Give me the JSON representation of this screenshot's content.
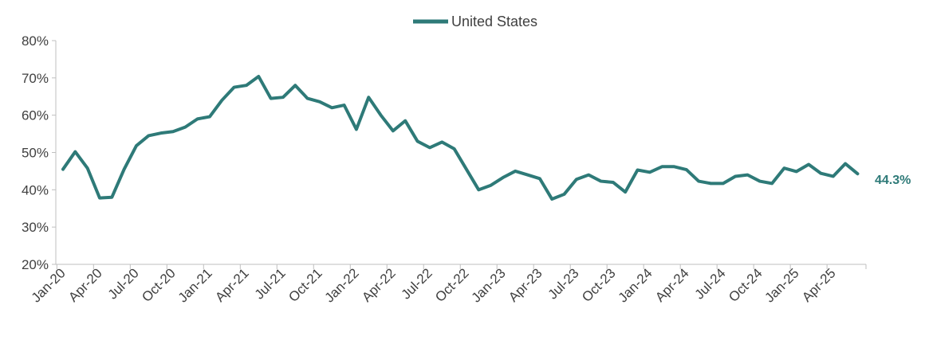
{
  "chart_data": {
    "type": "line",
    "title": "",
    "xlabel": "",
    "ylabel": "",
    "ylim": [
      0.2,
      0.8
    ],
    "y_ticks": [
      0.2,
      0.3,
      0.4,
      0.5,
      0.6,
      0.7,
      0.8
    ],
    "y_tick_labels": [
      "20%",
      "30%",
      "40%",
      "50%",
      "60%",
      "70%",
      "80%"
    ],
    "x_tick_labels": [
      "Jan-20",
      "Apr-20",
      "Jul-20",
      "Oct-20",
      "Jan-21",
      "Apr-21",
      "Jul-21",
      "Oct-21",
      "Jan-22",
      "Apr-22",
      "Jul-22",
      "Oct-22",
      "Jan-23",
      "Apr-23",
      "Jul-23",
      "Oct-23",
      "Jan-24",
      "Apr-24",
      "Jul-24",
      "Oct-24",
      "Jan-25",
      "Apr-25"
    ],
    "grid": false,
    "legend": "top-center",
    "color": "#2e7a78",
    "series": [
      {
        "name": "United States",
        "x": [
          "Jan-20",
          "Feb-20",
          "Mar-20",
          "Apr-20",
          "May-20",
          "Jun-20",
          "Jul-20",
          "Aug-20",
          "Sep-20",
          "Oct-20",
          "Nov-20",
          "Dec-20",
          "Jan-21",
          "Feb-21",
          "Mar-21",
          "Apr-21",
          "May-21",
          "Jun-21",
          "Jul-21",
          "Aug-21",
          "Sep-21",
          "Oct-21",
          "Nov-21",
          "Dec-21",
          "Jan-22",
          "Feb-22",
          "Mar-22",
          "Apr-22",
          "May-22",
          "Jun-22",
          "Jul-22",
          "Aug-22",
          "Sep-22",
          "Oct-22",
          "Nov-22",
          "Dec-22",
          "Jan-23",
          "Feb-23",
          "Mar-23",
          "Apr-23",
          "May-23",
          "Jun-23",
          "Jul-23",
          "Aug-23",
          "Sep-23",
          "Oct-23",
          "Nov-23",
          "Dec-23",
          "Jan-24",
          "Feb-24",
          "Mar-24",
          "Apr-24",
          "May-24",
          "Jun-24",
          "Jul-24",
          "Aug-24",
          "Sep-24",
          "Oct-24",
          "Nov-24",
          "Dec-24",
          "Jan-25",
          "Feb-25",
          "Mar-25",
          "Apr-25",
          "May-25",
          "Jun-25"
        ],
        "values": [
          0.455,
          0.502,
          0.458,
          0.378,
          0.38,
          0.455,
          0.518,
          0.545,
          0.552,
          0.556,
          0.568,
          0.59,
          0.596,
          0.64,
          0.675,
          0.68,
          0.704,
          0.645,
          0.648,
          0.68,
          0.645,
          0.636,
          0.62,
          0.627,
          0.562,
          0.648,
          0.6,
          0.558,
          0.585,
          0.53,
          0.513,
          0.528,
          0.51,
          0.455,
          0.4,
          0.412,
          0.433,
          0.45,
          0.44,
          0.43,
          0.375,
          0.388,
          0.428,
          0.44,
          0.423,
          0.42,
          0.394,
          0.453,
          0.447,
          0.462,
          0.462,
          0.454,
          0.423,
          0.417,
          0.417,
          0.436,
          0.44,
          0.423,
          0.417,
          0.458,
          0.449,
          0.468,
          0.444,
          0.436,
          0.47,
          0.443
        ]
      }
    ],
    "end_label": "44.3%"
  }
}
